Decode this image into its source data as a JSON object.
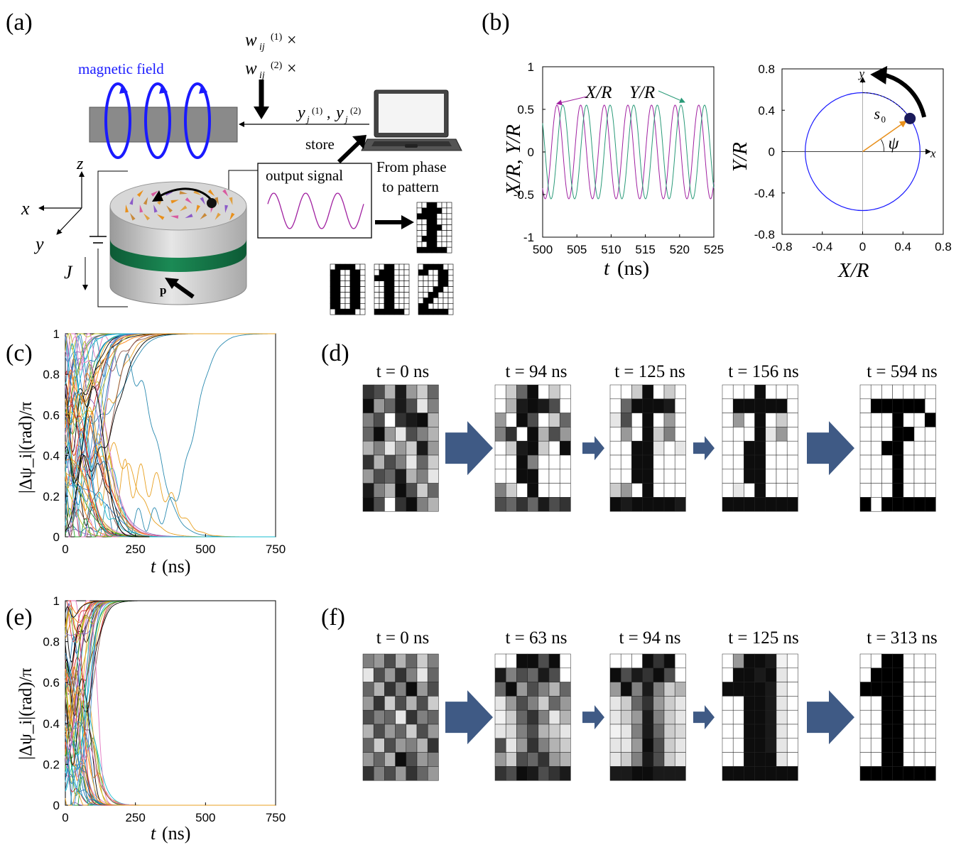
{
  "panels": {
    "a": {
      "label": "(a)",
      "magnetic_field": "magnetic field",
      "w1": "w",
      "w1_sub": "ij",
      "w1_sup": "(1)",
      "w2": "w",
      "w2_sub": "ij",
      "w2_sup": "(2)",
      "times": "×",
      "y_out": "y",
      "y_sub": "j",
      "y1_sup": "(1)",
      "y2_sup": "(2)",
      "comma": ",",
      "store": "store",
      "output_signal": "output signal",
      "phase_to_pattern_1": "From phase",
      "phase_to_pattern_2": "to pattern",
      "axis_x": "x",
      "axis_y": "y",
      "axis_z": "z",
      "current": "J",
      "polarizer": "p",
      "patterns": {
        "zero": [
          "0111100",
          "1100110",
          "1100110",
          "1100110",
          "1100110",
          "1100110",
          "1100110",
          "1100110",
          "0111100"
        ],
        "one": [
          "0011000",
          "0111000",
          "1111000",
          "0011000",
          "0011000",
          "0011000",
          "0011000",
          "0011000",
          "1111110"
        ],
        "two": [
          "0111100",
          "1100110",
          "0000110",
          "0000110",
          "0001100",
          "0011000",
          "0110000",
          "1100000",
          "1111110"
        ],
        "noisy_one": [
          "0011000",
          "0111100",
          "1111000",
          "0011000",
          "0011100",
          "0011000",
          "0111000",
          "0011000",
          "1111110"
        ]
      }
    },
    "b": {
      "label": "(b)"
    },
    "c": {
      "label": "(c)"
    },
    "d": {
      "label": "(d)",
      "times": [
        "t = 0 ns",
        "t = 94 ns",
        "t = 125 ns",
        "t = 156 ns",
        "t = 594 ns"
      ],
      "grids": [
        [
          [
            0.2,
            0.3,
            0.7,
            0.1,
            0.6,
            0.8,
            0.4
          ],
          [
            0.05,
            0.6,
            0.4,
            0.1,
            0.3,
            0.9,
            0.5
          ],
          [
            0.5,
            0.3,
            1,
            0.2,
            0.1,
            0.05,
            0.7
          ],
          [
            0.4,
            0.05,
            0.6,
            0.9,
            0.3,
            0.5,
            0.7
          ],
          [
            0.7,
            0.5,
            0.9,
            0.6,
            0.8,
            0.1,
            0.6
          ],
          [
            0.2,
            0.7,
            0.3,
            0.5,
            0.9,
            0.4,
            0.8
          ],
          [
            0.6,
            0.3,
            0.4,
            0.1,
            0.7,
            0.5,
            0.9
          ],
          [
            0.1,
            0.5,
            0.7,
            0.05,
            0.3,
            0.8,
            0.4
          ],
          [
            0.05,
            0.3,
            1,
            0.2,
            0.05,
            0.5,
            0.7
          ]
        ],
        [
          [
            1,
            0.8,
            0.4,
            0.05,
            1,
            0.8,
            1
          ],
          [
            1,
            0.7,
            0.1,
            0.05,
            0.1,
            0.3,
            1
          ],
          [
            0.6,
            1,
            0.05,
            0.3,
            1,
            0.8,
            0.4
          ],
          [
            0.5,
            0.2,
            1,
            0.05,
            0.7,
            0.3,
            0.6
          ],
          [
            1,
            0.8,
            0.1,
            0.05,
            0.8,
            1,
            0.05
          ],
          [
            1,
            1,
            0.05,
            0.5,
            1,
            1,
            1
          ],
          [
            1,
            1,
            0.05,
            0.05,
            1,
            1,
            1
          ],
          [
            0.5,
            0.8,
            1,
            0.05,
            1,
            1,
            1
          ],
          [
            0.3,
            0.4,
            0.2,
            0.4,
            0.1,
            0.3,
            0.2
          ]
        ],
        [
          [
            1,
            1,
            0.8,
            0.05,
            1,
            0.8,
            1
          ],
          [
            1,
            0.4,
            0.05,
            0.05,
            0.05,
            0.1,
            1
          ],
          [
            0.9,
            0.3,
            1,
            0.05,
            1,
            0.6,
            1
          ],
          [
            1,
            0.6,
            1,
            0.05,
            0.8,
            0.5,
            1
          ],
          [
            1,
            1,
            0.05,
            0.05,
            0.9,
            1,
            0.9
          ],
          [
            1,
            1,
            0.05,
            0.05,
            1,
            1,
            1
          ],
          [
            1,
            1,
            0.05,
            0.05,
            1,
            1,
            1
          ],
          [
            0.8,
            0.6,
            1,
            0.05,
            1,
            1,
            1
          ],
          [
            0.05,
            0.1,
            0.05,
            0.05,
            0.05,
            0.05,
            0.1
          ]
        ],
        [
          [
            1,
            1,
            1,
            0.05,
            1,
            1,
            1
          ],
          [
            1,
            0.05,
            0.05,
            0.05,
            0.05,
            0.05,
            1
          ],
          [
            1,
            0.6,
            1,
            0.05,
            1,
            0.8,
            1
          ],
          [
            1,
            1,
            1,
            0.05,
            0.9,
            0.6,
            1
          ],
          [
            1,
            1,
            0.05,
            0.05,
            1,
            1,
            1
          ],
          [
            1,
            1,
            0.05,
            0.05,
            1,
            1,
            1
          ],
          [
            1,
            1,
            0.05,
            0.05,
            1,
            1,
            1
          ],
          [
            1,
            0.9,
            1,
            0.05,
            1,
            1,
            1
          ],
          [
            0.05,
            0.05,
            0.05,
            0.05,
            0.05,
            0.05,
            0.05
          ]
        ],
        [
          [
            1,
            1,
            1,
            1,
            1,
            1,
            1
          ],
          [
            1,
            0,
            0,
            0,
            0,
            0,
            1
          ],
          [
            1,
            1,
            1,
            0,
            1,
            1,
            0
          ],
          [
            1,
            1,
            1,
            0,
            0,
            1,
            1
          ],
          [
            1,
            1,
            0,
            0,
            1,
            1,
            1
          ],
          [
            1,
            1,
            1,
            0,
            1,
            1,
            1
          ],
          [
            1,
            1,
            1,
            0,
            1,
            1,
            1
          ],
          [
            1,
            1,
            1,
            0,
            1,
            1,
            1
          ],
          [
            0,
            1,
            0,
            0,
            0,
            0,
            0
          ]
        ]
      ]
    },
    "e": {
      "label": "(e)"
    },
    "f": {
      "label": "(f)",
      "times": [
        "t = 0 ns",
        "t = 63 ns",
        "t = 94 ns",
        "t = 125 ns",
        "t = 313 ns"
      ],
      "grids": [
        [
          [
            0.5,
            0.6,
            0.3,
            0.7,
            0.4,
            0.8,
            0.5
          ],
          [
            0.9,
            0.3,
            0.6,
            0.2,
            0.5,
            0.9,
            0.4
          ],
          [
            0.4,
            0.7,
            0.2,
            0.5,
            0.05,
            0.6,
            0.3
          ],
          [
            0.6,
            0.2,
            0.8,
            0.3,
            0.7,
            0.3,
            0.8
          ],
          [
            0.3,
            0.5,
            0.4,
            0.9,
            0.2,
            0.5,
            0.4
          ],
          [
            0.7,
            0.3,
            0.6,
            0.4,
            0.8,
            0.3,
            0.6
          ],
          [
            0.4,
            0.8,
            0.3,
            0.6,
            0.5,
            0.7,
            0.2
          ],
          [
            0.6,
            0.4,
            0.7,
            0.05,
            0.3,
            0.6,
            0.5
          ],
          [
            0.2,
            0.5,
            0.3,
            0.6,
            0.2,
            0.4,
            0.6
          ]
        ],
        [
          [
            1,
            1,
            0.05,
            0.05,
            0.3,
            0.05,
            1
          ],
          [
            0.1,
            0.5,
            0.3,
            0.4,
            0.1,
            0.3,
            1
          ],
          [
            0.4,
            0.05,
            0.6,
            0.3,
            0.5,
            0.7,
            0.4
          ],
          [
            0.9,
            0.6,
            0.3,
            0.5,
            0.8,
            0.4,
            0.6
          ],
          [
            0.95,
            0.8,
            0.4,
            0.2,
            0.5,
            0.9,
            0.7
          ],
          [
            0.9,
            0.85,
            0.5,
            0.3,
            0.7,
            0.8,
            0.9
          ],
          [
            0.3,
            0.9,
            0.6,
            0.2,
            0.5,
            0.7,
            0.8
          ],
          [
            0.6,
            0.8,
            0.3,
            0.4,
            0.2,
            0.6,
            0.7
          ],
          [
            0.2,
            0.3,
            0.05,
            0.1,
            0.3,
            0.2,
            0.1
          ]
        ],
        [
          [
            1,
            1,
            1,
            0.05,
            0.2,
            0.05,
            1
          ],
          [
            0.05,
            0.3,
            0.1,
            0.2,
            0.05,
            0.3,
            1
          ],
          [
            0.6,
            0.05,
            0.5,
            0.1,
            0.5,
            0.8,
            0.7
          ],
          [
            0.9,
            0.8,
            0.4,
            0.2,
            0.6,
            0.8,
            0.9
          ],
          [
            0.9,
            0.8,
            0.6,
            0.1,
            0.5,
            0.8,
            0.9
          ],
          [
            0.95,
            0.9,
            0.5,
            0.1,
            0.4,
            0.8,
            0.85
          ],
          [
            0.9,
            0.9,
            0.6,
            0.05,
            0.3,
            0.8,
            0.9
          ],
          [
            0.9,
            0.8,
            0.5,
            0.1,
            0.3,
            0.8,
            0.9
          ],
          [
            0.1,
            0.1,
            0.05,
            0.05,
            0.1,
            0.1,
            0.1
          ]
        ],
        [
          [
            1,
            0.6,
            0.05,
            0.05,
            0.1,
            0.95,
            1
          ],
          [
            1,
            0.05,
            0.05,
            0.1,
            0.05,
            0.9,
            1
          ],
          [
            0.05,
            0.05,
            0.05,
            0.05,
            0.1,
            0.9,
            1
          ],
          [
            1,
            1,
            0.05,
            0.05,
            0.1,
            0.9,
            1
          ],
          [
            1,
            1,
            0.05,
            0.05,
            0.1,
            0.9,
            1
          ],
          [
            1,
            1,
            0.05,
            0.05,
            0.1,
            0.9,
            1
          ],
          [
            1,
            1,
            0.05,
            0.05,
            0.1,
            0.9,
            1
          ],
          [
            1,
            1,
            0.05,
            0.05,
            0.05,
            0.9,
            1
          ],
          [
            0.05,
            0.05,
            0.05,
            0.05,
            0.05,
            0.05,
            0.05
          ]
        ],
        [
          [
            1,
            1,
            0,
            0,
            1,
            1,
            1
          ],
          [
            1,
            0,
            0,
            0,
            1,
            1,
            1
          ],
          [
            0,
            0,
            0,
            0,
            1,
            1,
            1
          ],
          [
            1,
            1,
            0,
            0,
            1,
            1,
            1
          ],
          [
            1,
            1,
            0,
            0,
            1,
            1,
            1
          ],
          [
            1,
            1,
            0,
            0,
            1,
            1,
            1
          ],
          [
            1,
            1,
            0,
            0,
            1,
            1,
            1
          ],
          [
            1,
            1,
            0,
            0,
            1,
            1,
            1
          ],
          [
            0,
            0,
            0,
            0,
            0,
            0,
            0
          ]
        ]
      ]
    }
  },
  "chart_data": [
    {
      "id": "b-left",
      "type": "line",
      "xlabel_var": "t",
      "xlabel_unit": "(ns)",
      "ylabel": "X/R,  Y/R",
      "xlim": [
        500,
        525
      ],
      "ylim": [
        -1,
        1
      ],
      "xticks": [
        "500",
        "505",
        "510",
        "515",
        "520",
        "525"
      ],
      "yticks": [
        "1",
        "0.5",
        "0",
        "-0.5",
        "-1"
      ],
      "series": [
        {
          "name": "X/R",
          "color": "#a020a0",
          "amplitude": 0.55,
          "period_ns": 3.45,
          "phase_peak_ns": 502.1
        },
        {
          "name": "Y/R",
          "color": "#2a9a78",
          "amplitude": 0.55,
          "period_ns": 3.45,
          "phase_peak_ns": 502.95
        }
      ]
    },
    {
      "id": "b-right",
      "type": "scatter",
      "xlabel": "X/R",
      "ylabel": "Y/R",
      "xlim": [
        -0.8,
        0.8
      ],
      "ylim": [
        -0.8,
        0.8
      ],
      "xticks": [
        "-0.8",
        "-0.4",
        "0",
        "0.4",
        "0.8"
      ],
      "yticks": [
        "0.8",
        "0.4",
        "0",
        "-0.4",
        "-0.8"
      ],
      "circle_radius": 0.57,
      "point": {
        "x": 0.47,
        "y": 0.32
      },
      "labels": {
        "s0": "s",
        "s0_sub": "0",
        "psi": "ψ",
        "x": "x",
        "y": "y"
      },
      "colors": {
        "circle": "#1a1aff",
        "vector": "#e8901c"
      }
    },
    {
      "id": "c",
      "type": "line",
      "xlabel_var": "t",
      "xlabel_unit": "(ns)",
      "ylabel": "|Δψ_i|(rad)/π",
      "xlim": [
        0,
        750
      ],
      "ylim": [
        0,
        1
      ],
      "xticks": [
        "0",
        "250",
        "500",
        "750"
      ],
      "yticks": [
        "1",
        "0.8",
        "0.6",
        "0.4",
        "0.2",
        "0"
      ],
      "series_summary": "many phase-difference trajectories converging to 0 or 1; slowest blue ones switch near 400 and 460 ns",
      "slow_transitions_ns": [
        220,
        265,
        330,
        400,
        460
      ],
      "peak_curve": {
        "t_ns": 100,
        "value": 0.74
      }
    },
    {
      "id": "e",
      "type": "line",
      "xlabel_var": "t",
      "xlabel_unit": "(ns)",
      "ylabel": "|Δψ_i|(rad)/π",
      "xlim": [
        0,
        750
      ],
      "ylim": [
        0,
        1
      ],
      "xticks": [
        "0",
        "250",
        "500",
        "750"
      ],
      "yticks": [
        "1",
        "0.8",
        "0.6",
        "0.4",
        "0.2",
        "0"
      ],
      "series_summary": "all trajectories converge to 0 or 1 by about 150 ns"
    }
  ]
}
